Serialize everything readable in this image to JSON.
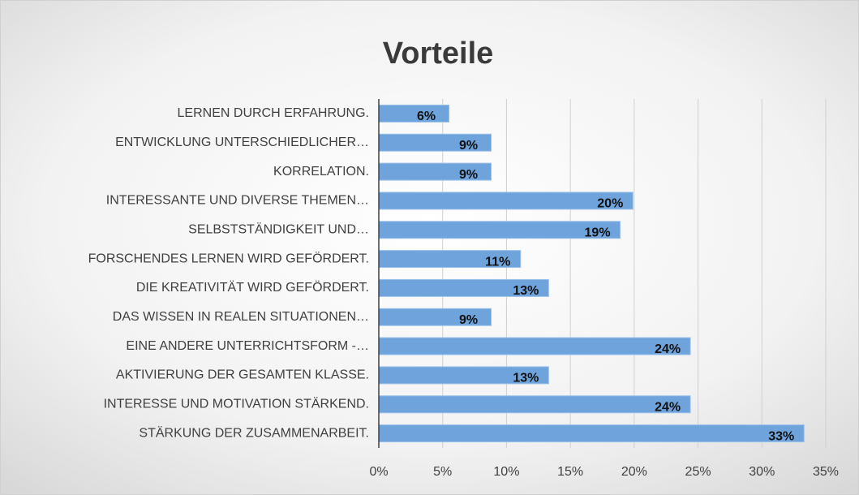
{
  "chart_data": {
    "type": "bar",
    "orientation": "horizontal",
    "title": "Vorteile",
    "categories": [
      "LERNEN DURCH ERFAHRUNG.",
      "ENTWICKLUNG UNTERSCHIEDLICHER…",
      "KORRELATION.",
      "INTERESSANTE UND DIVERSE THEMEN…",
      "SELBSTSTÄNDIGKEIT UND…",
      "FORSCHENDES LERNEN WIRD GEFÖRDERT.",
      "DIE KREATIVITÄT WIRD GEFÖRDERT.",
      "DAS WISSEN IN REALEN SITUATIONEN…",
      "EINE ANDERE UNTERRICHTSFORM -…",
      "AKTIVIERUNG DER GESAMTEN KLASSE.",
      "INTERESSE UND MOTIVATION STÄRKEND.",
      "STÄRKUNG DER ZUSAMMENARBEIT."
    ],
    "values": [
      5.5,
      8.8,
      8.8,
      19.9,
      18.9,
      11.1,
      13.3,
      8.8,
      24.4,
      13.3,
      24.4,
      33.3
    ],
    "value_labels": [
      "6%",
      "9%",
      "9%",
      "20%",
      "19%",
      "11%",
      "13%",
      "9%",
      "24%",
      "13%",
      "24%",
      "33%"
    ],
    "color": "#6fa3dc",
    "xlim": [
      0,
      35
    ],
    "xticks": [
      {
        "value": 0,
        "label": "0%"
      },
      {
        "value": 5,
        "label": "5%"
      },
      {
        "value": 10,
        "label": "10%"
      },
      {
        "value": 15,
        "label": "15%"
      },
      {
        "value": 20,
        "label": "20%"
      },
      {
        "value": 25,
        "label": "25%"
      },
      {
        "value": 30,
        "label": "30%"
      },
      {
        "value": 35,
        "label": "35%"
      }
    ],
    "grid": true
  }
}
